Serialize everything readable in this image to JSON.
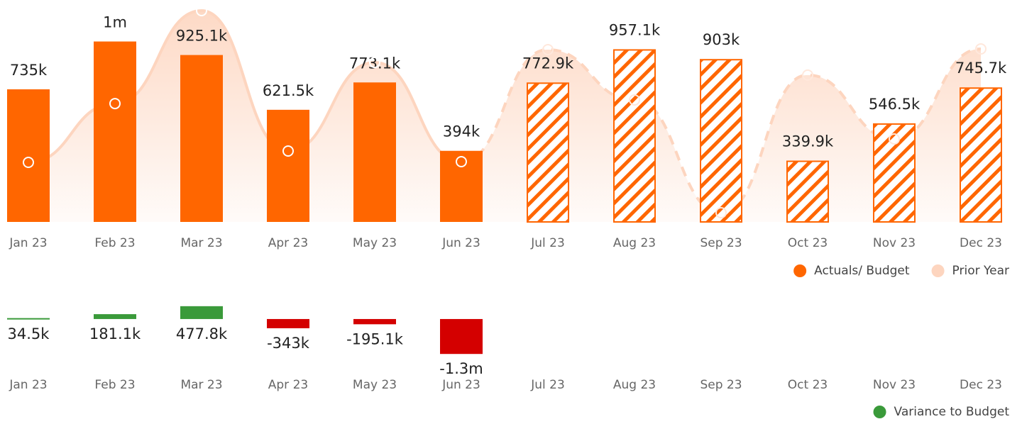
{
  "chart_data": [
    {
      "type": "bar",
      "categories": [
        "Jan 23",
        "Feb 23",
        "Mar 23",
        "Apr 23",
        "May 23",
        "Jun 23",
        "Jul 23",
        "Aug 23",
        "Sep 23",
        "Oct 23",
        "Nov 23",
        "Dec 23"
      ],
      "ylim": [
        0,
        1230000
      ],
      "series": [
        {
          "name": "Actuals/ Budget",
          "color": "#ff6600",
          "values": [
            735000,
            1000000,
            925100,
            621500,
            773100,
            394000,
            772900,
            957100,
            903000,
            339900,
            546500,
            745700
          ],
          "value_labels": [
            "735k",
            "1m",
            "925.1k",
            "621.5k",
            "773.1k",
            "394k",
            "772.9k",
            "957.1k",
            "903k",
            "339.9k",
            "546.5k",
            "745.7k"
          ],
          "patterns": [
            "solid",
            "solid",
            "solid",
            "solid",
            "solid",
            "solid",
            "hatched",
            "hatched",
            "hatched",
            "hatched",
            "hatched",
            "hatched"
          ]
        },
        {
          "name": "Prior Year",
          "color": "#fdd5bf",
          "type": "area",
          "values": [
            330000,
            656000,
            1171000,
            393000,
            884000,
            334000,
            955000,
            676000,
            51000,
            814000,
            460000,
            959000
          ]
        }
      ],
      "legend": "bottom-right"
    },
    {
      "type": "bar",
      "categories": [
        "Jan 23",
        "Feb 23",
        "Mar 23",
        "Apr 23",
        "May 23",
        "Jun 23",
        "Jul 23",
        "Aug 23",
        "Sep 23",
        "Oct 23",
        "Nov 23",
        "Dec 23"
      ],
      "ylim": [
        -1400000,
        500000
      ],
      "series": [
        {
          "name": "Variance to Budget",
          "color": "#3a9a3a",
          "negative_color": "#d40000",
          "values": [
            34500,
            181100,
            477800,
            -343000,
            -195100,
            -1300000,
            null,
            null,
            null,
            null,
            null,
            null
          ],
          "value_labels": [
            "34.5k",
            "181.1k",
            "477.8k",
            "-343k",
            "-195.1k",
            "-1.3m",
            null,
            null,
            null,
            null,
            null,
            null
          ]
        }
      ],
      "legend": "bottom-right"
    }
  ]
}
